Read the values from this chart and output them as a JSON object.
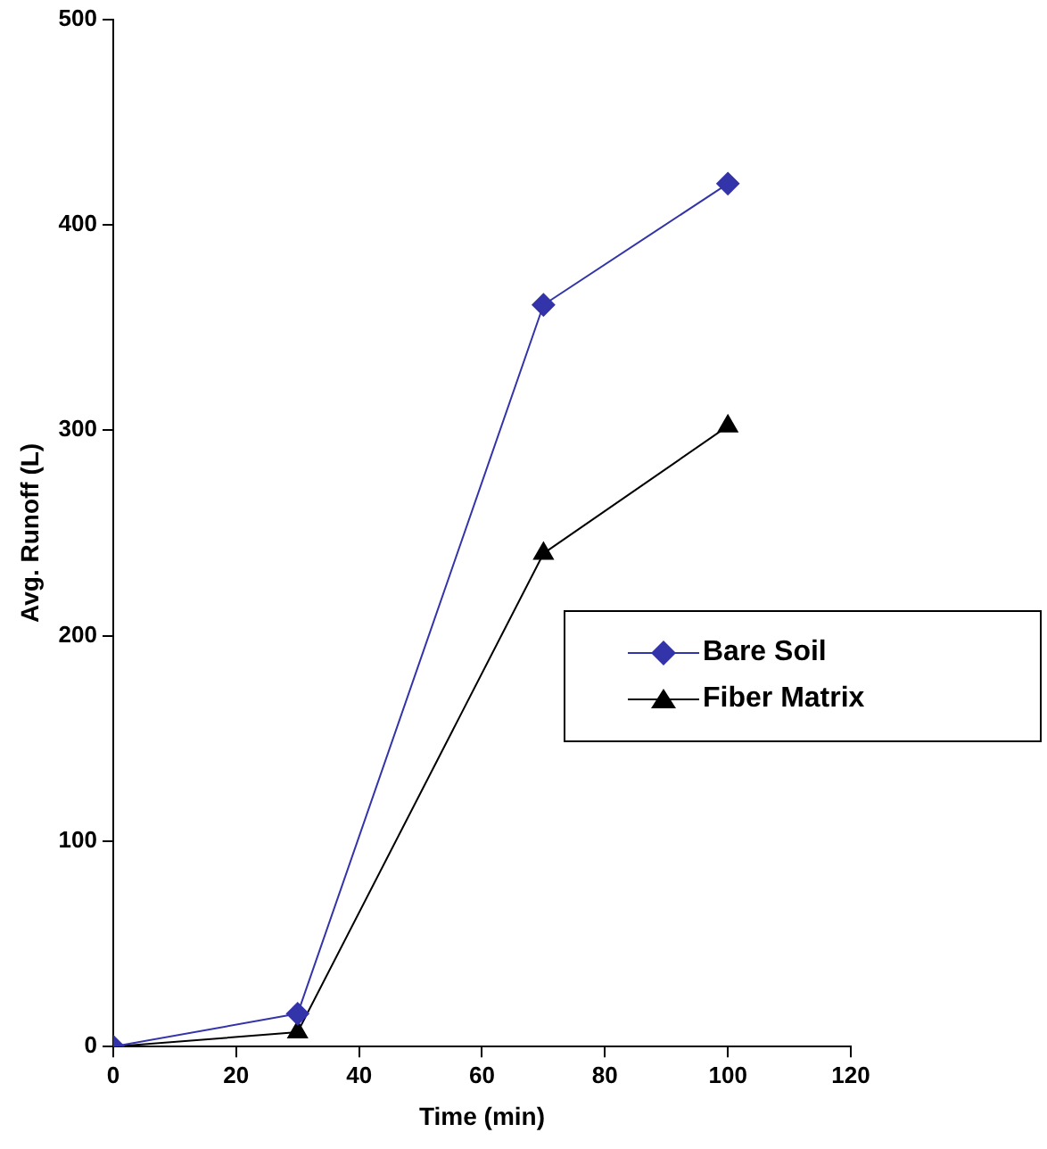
{
  "chart_data": {
    "type": "line",
    "xlabel": "Time (min)",
    "ylabel": "Avg. Runoff (L)",
    "x": [
      0,
      30,
      70,
      100
    ],
    "series": [
      {
        "name": "Bare Soil",
        "color": "#3333aa",
        "marker": "diamond",
        "values": [
          0,
          16,
          361,
          420
        ]
      },
      {
        "name": "Fiber Matrix",
        "color": "#000000",
        "marker": "triangle",
        "values": [
          0,
          7,
          240,
          302
        ]
      }
    ],
    "xlim": [
      0,
      120
    ],
    "xticks": [
      0,
      20,
      40,
      60,
      80,
      100,
      120
    ],
    "ylim": [
      0,
      500
    ],
    "yticks": [
      0,
      100,
      200,
      300,
      400,
      500
    ],
    "grid": false,
    "legend": "right",
    "line_style": "solid"
  }
}
